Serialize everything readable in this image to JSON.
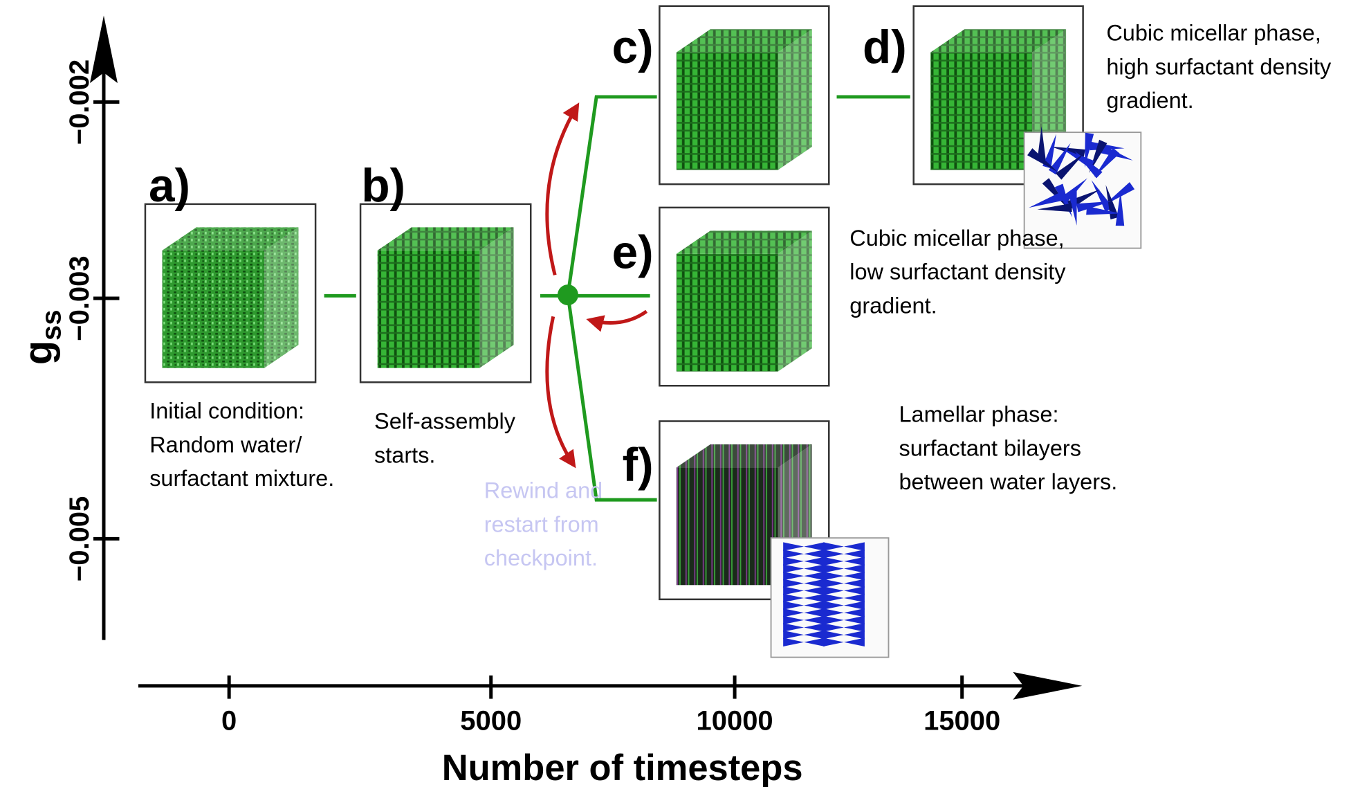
{
  "y_axis": {
    "label": "g",
    "subscript": "ss",
    "ticks": [
      "−0.002",
      "−0.003",
      "−0.005"
    ]
  },
  "x_axis": {
    "label": "Number of timesteps",
    "ticks": [
      "0",
      "5000",
      "10000",
      "15000"
    ]
  },
  "panels": [
    {
      "label": "a)",
      "caption": [
        "Initial condition:",
        "Random water/",
        "surfactant mixture."
      ]
    },
    {
      "label": "b)",
      "caption": [
        "Self-assembly",
        "starts."
      ]
    },
    {
      "label": "c)"
    },
    {
      "label": "d)",
      "caption": [
        "Cubic micellar phase,",
        "high surfactant density",
        "gradient."
      ]
    },
    {
      "label": "e)",
      "caption": [
        "Cubic micellar phase,",
        "low surfactant density",
        "gradient."
      ]
    },
    {
      "label": "f)",
      "caption": [
        "Lamellar phase:",
        "surfactant bilayers",
        "between water layers."
      ]
    }
  ],
  "annotation": [
    "Rewind and",
    "restart from",
    "checkpoint."
  ]
}
